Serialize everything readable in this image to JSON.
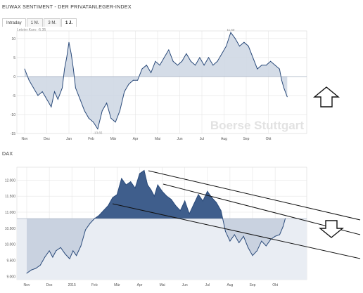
{
  "widget_title_top": "EUWAX SENTIMENT - DER PRIVATANLEGER-INDEX",
  "widget_title_bottom": "DAX",
  "tabs": [
    {
      "label": "Intraday"
    },
    {
      "label": "1 M."
    },
    {
      "label": "3 M."
    },
    {
      "label": "1 J."
    }
  ],
  "last_quote_label": "Letzter Kurs: -5,35",
  "watermark": "Boerse Stuttgart",
  "colors": {
    "line": "#2a4a7a",
    "fill_light": "#cdd6e3",
    "fill_dark": "#3f5e8c",
    "grid": "#e4e4e4",
    "axis_text": "#555555"
  },
  "chart_data": [
    {
      "type": "area",
      "title": "EUWAX SENTIMENT - DER PRIVATANLEGER-INDEX",
      "baseline": 0,
      "ylim": [
        -15,
        12
      ],
      "y_ticks": [
        "10",
        "5",
        "0",
        "-5",
        "-10",
        "-15"
      ],
      "x_ticks": [
        "Nov",
        "Dez",
        "Jan",
        "Feb",
        "Mär",
        "Apr",
        "Mai",
        "Jun",
        "Jul",
        "Aug",
        "Sep",
        "Okt"
      ],
      "annotations": [
        {
          "text": "-13,65",
          "x": 3.3,
          "y": -13.8
        },
        {
          "text": "11,60",
          "x": 9.3,
          "y": 11.6
        }
      ],
      "series": [
        {
          "values": [
            [
              0,
              2
            ],
            [
              0.2,
              -1
            ],
            [
              0.4,
              -3
            ],
            [
              0.6,
              -5
            ],
            [
              0.8,
              -4
            ],
            [
              1,
              -6
            ],
            [
              1.2,
              -8
            ],
            [
              1.35,
              -4
            ],
            [
              1.5,
              -6
            ],
            [
              1.7,
              -3
            ],
            [
              1.8,
              2
            ],
            [
              1.9,
              5
            ],
            [
              2,
              9
            ],
            [
              2.1,
              6
            ],
            [
              2.2,
              2
            ],
            [
              2.3,
              -3
            ],
            [
              2.5,
              -6
            ],
            [
              2.7,
              -9
            ],
            [
              2.9,
              -11
            ],
            [
              3.1,
              -12
            ],
            [
              3.3,
              -13.8
            ],
            [
              3.5,
              -9
            ],
            [
              3.7,
              -7
            ],
            [
              3.9,
              -11
            ],
            [
              4.1,
              -12
            ],
            [
              4.3,
              -9
            ],
            [
              4.5,
              -4
            ],
            [
              4.7,
              -2
            ],
            [
              4.9,
              -1
            ],
            [
              5.1,
              -1
            ],
            [
              5.3,
              2
            ],
            [
              5.5,
              3
            ],
            [
              5.7,
              1
            ],
            [
              5.9,
              4
            ],
            [
              6.1,
              3
            ],
            [
              6.3,
              5
            ],
            [
              6.5,
              7
            ],
            [
              6.7,
              4
            ],
            [
              6.9,
              3
            ],
            [
              7.1,
              4
            ],
            [
              7.3,
              6
            ],
            [
              7.5,
              4
            ],
            [
              7.7,
              3
            ],
            [
              7.9,
              5
            ],
            [
              8.1,
              3
            ],
            [
              8.3,
              5
            ],
            [
              8.5,
              3
            ],
            [
              8.7,
              4
            ],
            [
              8.9,
              6
            ],
            [
              9.1,
              8
            ],
            [
              9.3,
              11.6
            ],
            [
              9.5,
              10
            ],
            [
              9.7,
              8
            ],
            [
              9.9,
              9
            ],
            [
              10.1,
              8
            ],
            [
              10.3,
              5
            ],
            [
              10.5,
              2
            ],
            [
              10.7,
              3
            ],
            [
              10.9,
              3
            ],
            [
              11.1,
              4
            ],
            [
              11.3,
              3
            ],
            [
              11.5,
              2
            ],
            [
              11.6,
              -1
            ],
            [
              11.7,
              -3
            ],
            [
              11.85,
              -5.35
            ]
          ]
        }
      ]
    },
    {
      "type": "area",
      "title": "DAX",
      "baseline": 10800,
      "ylim": [
        8900,
        12400
      ],
      "y_ticks": [
        "12.000",
        "11.500",
        "11.000",
        "10.500",
        "10.000",
        "9.500",
        "9.000"
      ],
      "x_ticks": [
        "Nov",
        "Dez",
        "2015",
        "Feb",
        "Mär",
        "Apr",
        "Mai",
        "Jun",
        "Jul",
        "Aug",
        "Sep",
        "Okt"
      ],
      "series": [
        {
          "values": [
            [
              0,
              9100
            ],
            [
              0.2,
              9200
            ],
            [
              0.4,
              9250
            ],
            [
              0.6,
              9350
            ],
            [
              0.8,
              9600
            ],
            [
              1,
              9800
            ],
            [
              1.15,
              9600
            ],
            [
              1.3,
              9800
            ],
            [
              1.5,
              9900
            ],
            [
              1.7,
              9700
            ],
            [
              1.9,
              9550
            ],
            [
              2.05,
              9800
            ],
            [
              2.2,
              9650
            ],
            [
              2.4,
              9950
            ],
            [
              2.6,
              10450
            ],
            [
              2.8,
              10650
            ],
            [
              3,
              10800
            ],
            [
              3.2,
              10900
            ],
            [
              3.4,
              11050
            ],
            [
              3.6,
              11200
            ],
            [
              3.8,
              11450
            ],
            [
              4,
              11550
            ],
            [
              4.2,
              12050
            ],
            [
              4.4,
              11850
            ],
            [
              4.6,
              11950
            ],
            [
              4.8,
              11750
            ],
            [
              5,
              12200
            ],
            [
              5.2,
              12300
            ],
            [
              5.35,
              11850
            ],
            [
              5.5,
              11700
            ],
            [
              5.65,
              11500
            ],
            [
              5.8,
              11850
            ],
            [
              6,
              11650
            ],
            [
              6.2,
              11500
            ],
            [
              6.4,
              11400
            ],
            [
              6.6,
              11200
            ],
            [
              6.8,
              11050
            ],
            [
              7,
              11350
            ],
            [
              7.2,
              10950
            ],
            [
              7.4,
              11250
            ],
            [
              7.6,
              11550
            ],
            [
              7.8,
              11350
            ],
            [
              8,
              11650
            ],
            [
              8.2,
              11450
            ],
            [
              8.4,
              11300
            ],
            [
              8.6,
              11050
            ],
            [
              8.8,
              10400
            ],
            [
              9,
              10100
            ],
            [
              9.2,
              10300
            ],
            [
              9.4,
              10050
            ],
            [
              9.6,
              10250
            ],
            [
              9.8,
              9900
            ],
            [
              10,
              9650
            ],
            [
              10.2,
              9800
            ],
            [
              10.4,
              10100
            ],
            [
              10.6,
              9950
            ],
            [
              10.8,
              10150
            ],
            [
              11,
              10250
            ],
            [
              11.2,
              10300
            ],
            [
              11.35,
              10550
            ],
            [
              11.45,
              10800
            ]
          ]
        }
      ]
    }
  ]
}
